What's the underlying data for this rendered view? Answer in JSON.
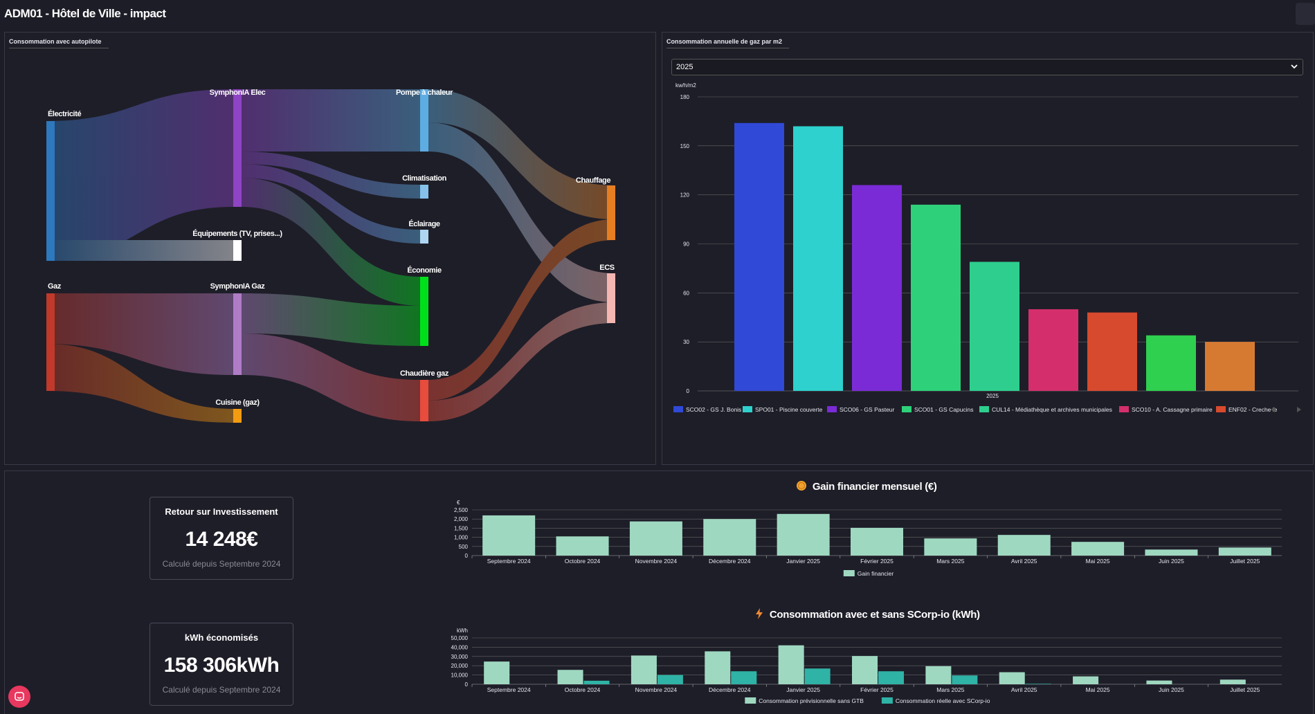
{
  "page": {
    "title": "ADM01 - Hôtel de Ville - impact"
  },
  "sankey": {
    "title": "Consommation avec autopilote",
    "nodes": {
      "elec": "Électricité",
      "symph_elec": "SymphonIA Elec",
      "equip": "Équipements (TV, prises...)",
      "gaz": "Gaz",
      "symph_gaz": "SymphonIA Gaz",
      "cuisine": "Cuisine (gaz)",
      "pac": "Pompe à chaleur",
      "clim": "Climatisation",
      "eclairage": "Éclairage",
      "economie": "Économie",
      "chaudiere": "Chaudière gaz",
      "chauffage": "Chauffage",
      "ecs": "ECS"
    },
    "colors": {
      "elec": "#2e78bd",
      "symph_elec": "#8e44c4",
      "equip": "#ffffff",
      "gaz": "#c0392b",
      "symph_gaz": "#b07cc6",
      "cuisine": "#f39c12",
      "pac": "#5dade2",
      "clim": "#85c1e9",
      "eclairage": "#aed6f1",
      "economie": "#00e01a",
      "chaudiere": "#e74c3c",
      "chauffage": "#e67e22",
      "ecs": "#f5b7b1"
    }
  },
  "gas_chart": {
    "title": "Consommation annuelle de gaz par m2",
    "year_select": "2025",
    "chart_data": {
      "type": "bar",
      "ylabel": "kw/h/m2",
      "ylim": [
        0,
        180
      ],
      "yticks": [
        "0",
        "30",
        "60",
        "90",
        "120",
        "150",
        "180"
      ],
      "category": "2025",
      "series": [
        {
          "name": "SCO02 - GS J. Bonis",
          "value": 164,
          "color": "#3049d6"
        },
        {
          "name": "SPO01 - Piscine couverte",
          "value": 162,
          "color": "#2ed1cd"
        },
        {
          "name": "SCO06 - GS Pasteur",
          "value": 126,
          "color": "#7a2bd6"
        },
        {
          "name": "SCO01 - GS Capucins",
          "value": 114,
          "color": "#2ed17a"
        },
        {
          "name": "CUL14 - Médiathèque et archives municipales",
          "value": 79,
          "color": "#2ecf8e"
        },
        {
          "name": "SCO10 - A. Cassagne primaire",
          "value": 50,
          "color": "#d42f6c"
        },
        {
          "name": "ENF02 - Creche le",
          "value": 48,
          "color": "#d74a2e"
        },
        {
          "name": "",
          "value": 34,
          "color": "#2fcf4f"
        },
        {
          "name": "",
          "value": 30,
          "color": "#d67a32"
        }
      ]
    }
  },
  "kpis": {
    "roi": {
      "label": "Retour sur Investissement",
      "value": "14 248€",
      "sub": "Calculé depuis Septembre 2024"
    },
    "kwh": {
      "label": "kWh économisés",
      "value": "158 306kWh",
      "sub": "Calculé depuis Septembre 2024"
    }
  },
  "gain_chart": {
    "title": "Gain financier mensuel (€)",
    "icon": "coin-icon",
    "chart_data": {
      "type": "bar",
      "ylabel": "€",
      "ylim": [
        0,
        2500
      ],
      "yticks": [
        "0",
        "500",
        "1,000",
        "1,500",
        "2,000",
        "2,500"
      ],
      "categories": [
        "Septembre 2024",
        "Octobre 2024",
        "Novembre 2024",
        "Décembre 2024",
        "Janvier 2025",
        "Février 2025",
        "Mars 2025",
        "Avril 2025",
        "Mai 2025",
        "Juin 2025",
        "Juillet 2025"
      ],
      "series": [
        {
          "name": "Gain financier",
          "color": "#9fd8c0",
          "values": [
            2200,
            1050,
            1870,
            2000,
            2280,
            1520,
            940,
            1130,
            750,
            330,
            440
          ]
        }
      ]
    }
  },
  "conso_chart": {
    "title": "Consommation avec et sans SCorp-io (kWh)",
    "icon": "lightning-icon",
    "chart_data": {
      "type": "bar",
      "ylabel": "kWh",
      "ylim": [
        0,
        50000
      ],
      "yticks": [
        "0",
        "10,000",
        "20,000",
        "30,000",
        "40,000",
        "50,000"
      ],
      "categories": [
        "Septembre 2024",
        "Octobre 2024",
        "Novembre 2024",
        "Décembre 2024",
        "Janvier 2025",
        "Février 2025",
        "Mars 2025",
        "Avril 2025",
        "Mai 2025",
        "Juin 2025",
        "Juillet 2025"
      ],
      "series": [
        {
          "name": "Consommation prévisionnelle sans GTB",
          "color": "#9fd8c0",
          "values": [
            24500,
            15500,
            31000,
            35500,
            42000,
            30500,
            19500,
            13000,
            8500,
            4000,
            5000
          ]
        },
        {
          "name": "Consommation réelle avec SCorp-io",
          "color": "#2fb3a6",
          "values": [
            0,
            3800,
            10000,
            14000,
            17000,
            14000,
            9500,
            500,
            0,
            0,
            0
          ]
        }
      ]
    }
  }
}
